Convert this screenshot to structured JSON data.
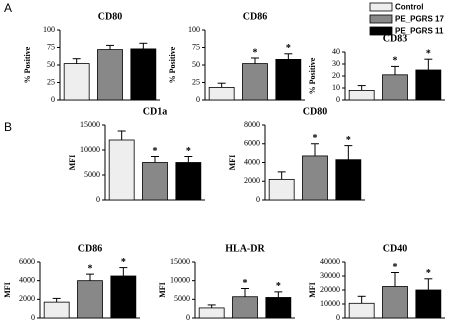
{
  "panel_labels": [
    "A",
    "B"
  ],
  "legend": {
    "items": [
      {
        "name": "Control",
        "color": "#eeeeee"
      },
      {
        "name": "PE_PGRS 17",
        "color": "#888888"
      },
      {
        "name": "PE_PGRS 11",
        "color": "#000000"
      }
    ]
  },
  "chart_data": [
    {
      "type": "bar",
      "title": "CD80",
      "ylabel": "% Positive",
      "ylim": [
        0,
        100
      ],
      "yticks": [
        0,
        25,
        50,
        75,
        100
      ],
      "values": [
        52,
        72,
        73
      ],
      "errors": [
        7,
        6,
        8
      ],
      "markers": [
        null,
        null,
        null
      ]
    },
    {
      "type": "bar",
      "title": "CD86",
      "ylabel": "% Positive",
      "ylim": [
        0,
        100
      ],
      "yticks": [
        0,
        25,
        50,
        75,
        100
      ],
      "values": [
        18,
        52,
        58
      ],
      "errors": [
        6,
        8,
        8
      ],
      "markers": [
        null,
        "*",
        "*"
      ]
    },
    {
      "type": "bar",
      "title": "CD83",
      "ylabel": "% Positive",
      "ylim": [
        0,
        40
      ],
      "yticks": [
        0,
        10,
        20,
        30,
        40
      ],
      "values": [
        8,
        21,
        25
      ],
      "errors": [
        4,
        7,
        9
      ],
      "markers": [
        null,
        "*",
        "*"
      ]
    },
    {
      "type": "bar",
      "title": "CD1a",
      "ylabel": "MFI",
      "ylim": [
        0,
        15000
      ],
      "yticks": [
        0,
        5000,
        10000,
        15000
      ],
      "values": [
        12000,
        7500,
        7500
      ],
      "errors": [
        1800,
        1200,
        1200
      ],
      "markers": [
        null,
        "*",
        "*"
      ]
    },
    {
      "type": "bar",
      "title": "CD80",
      "ylabel": "MFI",
      "ylim": [
        0,
        8000
      ],
      "yticks": [
        0,
        2000,
        4000,
        6000,
        8000
      ],
      "values": [
        2200,
        4700,
        4300
      ],
      "errors": [
        800,
        1300,
        1500
      ],
      "markers": [
        null,
        "*",
        "*"
      ]
    },
    {
      "type": "bar",
      "title": "CD86",
      "ylabel": "MFI",
      "ylim": [
        0,
        6000
      ],
      "yticks": [
        0,
        2000,
        4000,
        6000
      ],
      "values": [
        1700,
        4000,
        4500
      ],
      "errors": [
        400,
        700,
        900
      ],
      "markers": [
        null,
        "*",
        "*"
      ]
    },
    {
      "type": "bar",
      "title": "HLA-DR",
      "ylabel": "MFI",
      "ylim": [
        0,
        15000
      ],
      "yticks": [
        0,
        5000,
        10000,
        15000
      ],
      "values": [
        2700,
        5700,
        5500
      ],
      "errors": [
        800,
        2200,
        1500
      ],
      "markers": [
        null,
        "*",
        "*"
      ]
    },
    {
      "type": "bar",
      "title": "CD40",
      "ylabel": "MFI",
      "ylim": [
        0,
        40000
      ],
      "yticks": [
        0,
        10000,
        20000,
        30000,
        40000
      ],
      "values": [
        10500,
        22500,
        20000
      ],
      "errors": [
        5000,
        10000,
        8000
      ],
      "markers": [
        null,
        "*",
        "*"
      ]
    }
  ]
}
